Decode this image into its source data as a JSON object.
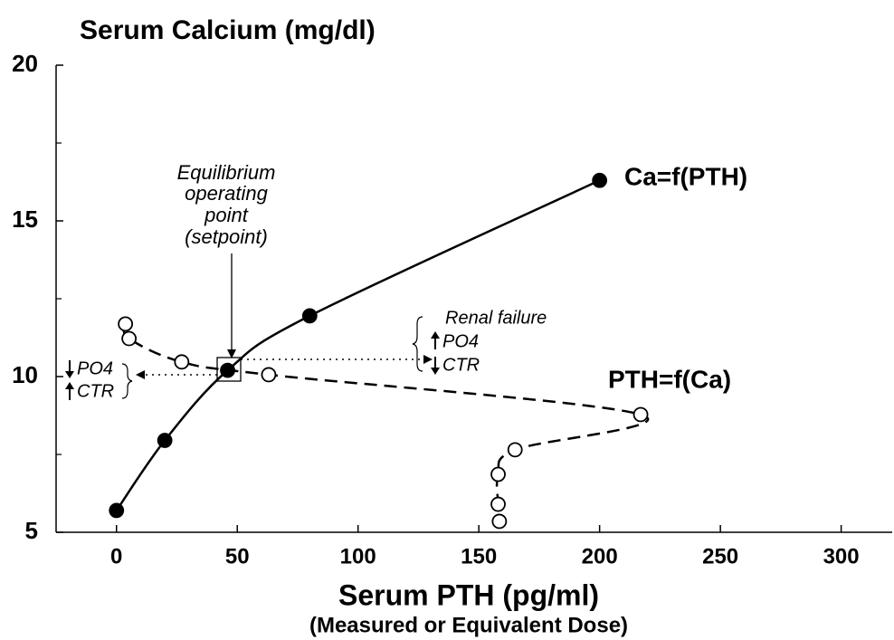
{
  "chart_data": {
    "type": "line",
    "title": "Serum Calcium (mg/dl)",
    "x_label": "Serum PTH (pg/ml)",
    "x_sublabel": "(Measured or Equivalent Dose)",
    "xlim": [
      -25,
      320
    ],
    "xticks": [
      0,
      50,
      100,
      150,
      200,
      250,
      300
    ],
    "ylim": [
      5,
      20
    ],
    "yticks": [
      5,
      10,
      15,
      20
    ],
    "yminor_ticks": [
      7.5,
      12.5,
      17.5
    ],
    "series": [
      {
        "name": "Ca=f(PTH)",
        "color": "#000000",
        "marker": "filled",
        "line": "solid",
        "x": [
          0,
          20,
          46,
          80,
          200
        ],
        "values": [
          5.7,
          7.95,
          10.2,
          11.95,
          16.3
        ]
      },
      {
        "name": "PTH=f(Ca)",
        "color": "#000000",
        "marker": "open",
        "line": "dashed",
        "x": [
          3.7,
          5.2,
          27,
          63,
          217,
          165,
          158,
          158,
          158.5
        ],
        "values": [
          11.69,
          11.22,
          10.47,
          10.06,
          8.78,
          7.65,
          6.86,
          5.9,
          5.35
        ]
      }
    ],
    "setpoint_label": [
      "Equilibrium",
      "operating",
      "point",
      "(setpoint)"
    ],
    "renal_failure": "Renal failure",
    "right_notes": [
      "PO4",
      "CTR"
    ],
    "left_notes": [
      "PO4",
      "CTR"
    ]
  }
}
